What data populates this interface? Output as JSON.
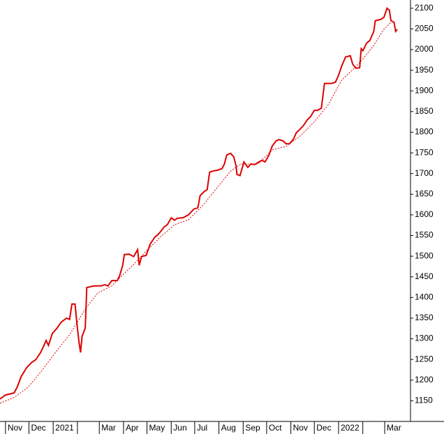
{
  "chart_data": {
    "type": "line",
    "series": [
      {
        "color": "#dd0000",
        "dash": false,
        "x": [
          -7,
          0,
          11,
          15,
          20,
          27,
          33,
          39,
          45,
          48,
          52,
          55,
          60,
          66,
          71,
          78,
          82,
          85,
          89,
          91,
          94,
          96,
          98,
          102,
          104,
          113,
          122,
          127,
          131,
          136,
          143,
          146,
          150,
          152,
          158,
          164,
          169,
          171,
          174,
          180,
          185,
          191,
          196,
          203,
          207,
          212,
          216,
          220,
          227,
          234,
          241,
          246,
          249,
          254,
          258,
          261,
          265,
          271,
          277,
          280,
          283,
          288,
          292,
          295,
          296,
          300,
          303,
          305,
          310,
          314,
          319,
          323,
          328,
          332,
          337,
          341,
          346,
          350,
          355,
          359,
          363,
          368,
          372,
          377,
          381,
          386,
          390,
          395,
          399,
          404,
          408,
          417,
          422,
          426,
          430,
          435,
          441,
          444,
          448,
          453,
          455,
          457,
          462,
          466,
          471,
          473,
          480,
          484,
          488,
          491,
          493,
          497,
          499,
          501
        ],
        "values": [
          1154,
          1164,
          1169,
          1183,
          1208,
          1230,
          1242,
          1250,
          1267,
          1279,
          1296,
          1284,
          1313,
          1326,
          1340,
          1350,
          1347,
          1384,
          1384,
          1343,
          1293,
          1267,
          1306,
          1326,
          1424,
          1428,
          1428,
          1431,
          1428,
          1441,
          1441,
          1453,
          1478,
          1504,
          1505,
          1499,
          1516,
          1478,
          1499,
          1502,
          1529,
          1546,
          1554,
          1571,
          1576,
          1593,
          1587,
          1592,
          1593,
          1600,
          1614,
          1617,
          1647,
          1656,
          1661,
          1703,
          1706,
          1708,
          1712,
          1723,
          1745,
          1749,
          1740,
          1718,
          1698,
          1695,
          1715,
          1728,
          1715,
          1723,
          1722,
          1727,
          1732,
          1728,
          1745,
          1766,
          1779,
          1782,
          1779,
          1772,
          1772,
          1782,
          1799,
          1808,
          1816,
          1830,
          1837,
          1853,
          1853,
          1858,
          1918,
          1918,
          1921,
          1938,
          1960,
          1982,
          1985,
          1965,
          1955,
          1956,
          2002,
          1997,
          2016,
          2022,
          2044,
          2070,
          2073,
          2078,
          2100,
          2095,
          2070,
          2066,
          2044,
          2049
        ]
      },
      {
        "color": "#dd0000",
        "dash": true,
        "x": [
          -7,
          11,
          29,
          46,
          64,
          82,
          94,
          104,
          118,
          136,
          149,
          163,
          180,
          198,
          216,
          234,
          252,
          270,
          288,
          301,
          323,
          341,
          359,
          377,
          395,
          413,
          430,
          444,
          457,
          471,
          484,
          493
        ],
        "values": [
          1144,
          1158,
          1183,
          1222,
          1267,
          1310,
          1347,
          1377,
          1411,
          1428,
          1453,
          1478,
          1512,
          1546,
          1576,
          1588,
          1622,
          1664,
          1706,
          1723,
          1723,
          1757,
          1766,
          1791,
          1825,
          1867,
          1926,
          1951,
          1977,
          2010,
          2049,
          2066
        ]
      }
    ],
    "xlim": [
      -7,
      518
    ],
    "xticks": [
      {
        "value": 0,
        "label": "Nov"
      },
      {
        "value": 30,
        "label": "Dec"
      },
      {
        "value": 61,
        "label": "2021"
      },
      {
        "value": 92,
        "label": null
      },
      {
        "value": 120,
        "label": "Mar"
      },
      {
        "value": 151,
        "label": "Apr"
      },
      {
        "value": 181,
        "label": "May"
      },
      {
        "value": 212,
        "label": "Jun"
      },
      {
        "value": 242,
        "label": "Jul"
      },
      {
        "value": 273,
        "label": "Aug"
      },
      {
        "value": 304,
        "label": "Sep"
      },
      {
        "value": 334,
        "label": "Oct"
      },
      {
        "value": 365,
        "label": "Nov"
      },
      {
        "value": 395,
        "label": "Dec"
      },
      {
        "value": 426,
        "label": "2022"
      },
      {
        "value": 457,
        "label": null
      },
      {
        "value": 485,
        "label": "Mar"
      }
    ],
    "ylim": [
      1100,
      2120
    ],
    "yticks": [
      1150,
      1200,
      1250,
      1300,
      1350,
      1400,
      1450,
      1500,
      1550,
      1600,
      1650,
      1700,
      1750,
      1800,
      1850,
      1900,
      1950,
      2000,
      2050,
      2100
    ]
  }
}
